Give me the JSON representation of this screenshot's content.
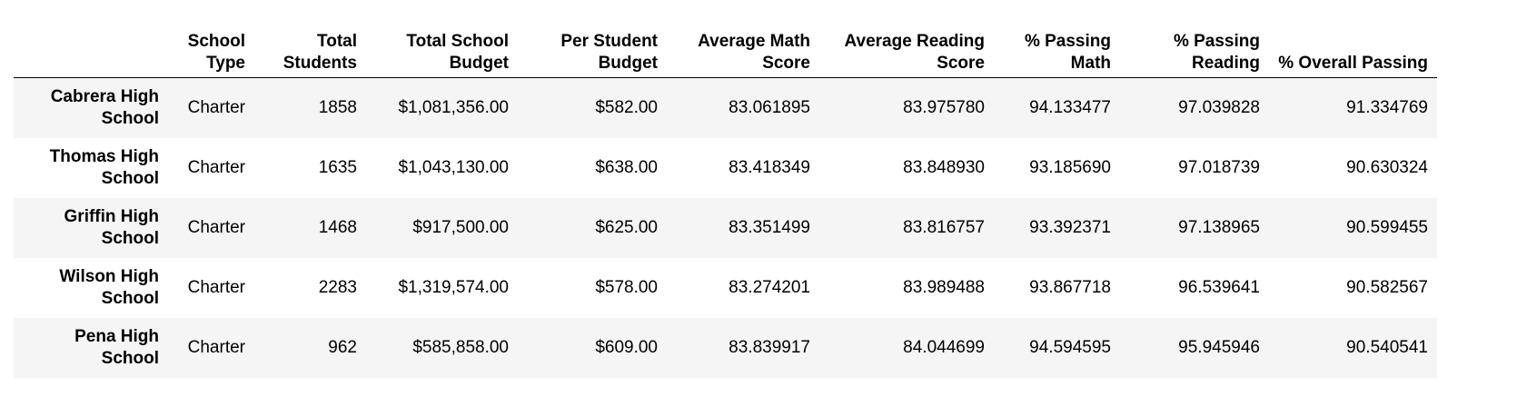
{
  "table": {
    "columns": [
      "",
      "School Type",
      "Total Students",
      "Total School Budget",
      "Per Student Budget",
      "Average Math Score",
      "Average Reading Score",
      "% Passing Math",
      "% Passing Reading",
      "% Overall Passing"
    ],
    "rows": [
      {
        "school_name": "Cabrera High School",
        "cells": [
          "Charter",
          "1858",
          "$1,081,356.00",
          "$582.00",
          "83.061895",
          "83.975780",
          "94.133477",
          "97.039828",
          "91.334769"
        ]
      },
      {
        "school_name": "Thomas High School",
        "cells": [
          "Charter",
          "1635",
          "$1,043,130.00",
          "$638.00",
          "83.418349",
          "83.848930",
          "93.185690",
          "97.018739",
          "90.630324"
        ]
      },
      {
        "school_name": "Griffin High School",
        "cells": [
          "Charter",
          "1468",
          "$917,500.00",
          "$625.00",
          "83.351499",
          "83.816757",
          "93.392371",
          "97.138965",
          "90.599455"
        ]
      },
      {
        "school_name": "Wilson High School",
        "cells": [
          "Charter",
          "2283",
          "$1,319,574.00",
          "$578.00",
          "83.274201",
          "83.989488",
          "93.867718",
          "96.539641",
          "90.582567"
        ]
      },
      {
        "school_name": "Pena High School",
        "cells": [
          "Charter",
          "962",
          "$585,858.00",
          "$609.00",
          "83.839917",
          "84.044699",
          "94.594595",
          "95.945946",
          "90.540541"
        ]
      }
    ]
  },
  "colors": {
    "odd_row_background": "#f5f5f5",
    "even_row_background": "#ffffff",
    "header_rule": "#000000"
  }
}
